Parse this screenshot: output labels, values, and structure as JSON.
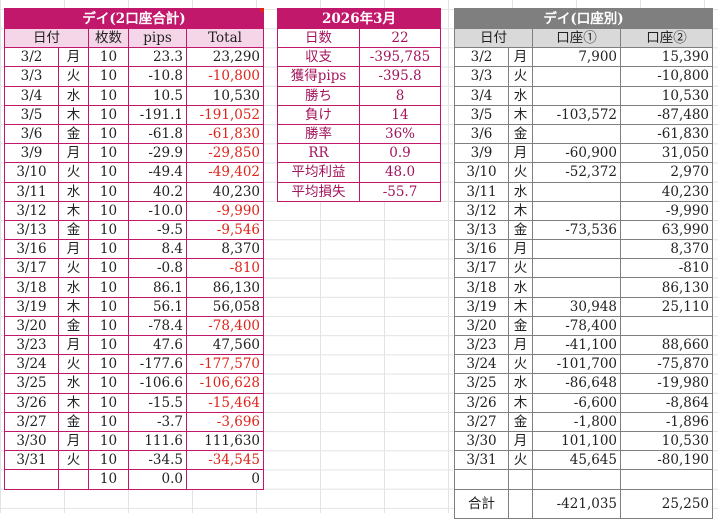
{
  "daily_total": {
    "title": "デイ(2口座合計)",
    "headers": [
      "日付",
      "枚数",
      "pips",
      "Total"
    ],
    "rows": [
      {
        "date": "3/2",
        "dow": "月",
        "lots": "10",
        "pips": "23.3",
        "total": "23,290",
        "neg": false
      },
      {
        "date": "3/3",
        "dow": "火",
        "lots": "10",
        "pips": "-10.8",
        "total": "-10,800",
        "neg": true
      },
      {
        "date": "3/4",
        "dow": "水",
        "lots": "10",
        "pips": "10.5",
        "total": "10,530",
        "neg": false
      },
      {
        "date": "3/5",
        "dow": "木",
        "lots": "10",
        "pips": "-191.1",
        "total": "-191,052",
        "neg": true
      },
      {
        "date": "3/6",
        "dow": "金",
        "lots": "10",
        "pips": "-61.8",
        "total": "-61,830",
        "neg": true
      },
      {
        "date": "3/9",
        "dow": "月",
        "lots": "10",
        "pips": "-29.9",
        "total": "-29,850",
        "neg": true
      },
      {
        "date": "3/10",
        "dow": "火",
        "lots": "10",
        "pips": "-49.4",
        "total": "-49,402",
        "neg": true
      },
      {
        "date": "3/11",
        "dow": "水",
        "lots": "10",
        "pips": "40.2",
        "total": "40,230",
        "neg": false
      },
      {
        "date": "3/12",
        "dow": "木",
        "lots": "10",
        "pips": "-10.0",
        "total": "-9,990",
        "neg": true
      },
      {
        "date": "3/13",
        "dow": "金",
        "lots": "10",
        "pips": "-9.5",
        "total": "-9,546",
        "neg": true
      },
      {
        "date": "3/16",
        "dow": "月",
        "lots": "10",
        "pips": "8.4",
        "total": "8,370",
        "neg": false
      },
      {
        "date": "3/17",
        "dow": "火",
        "lots": "10",
        "pips": "-0.8",
        "total": "-810",
        "neg": true
      },
      {
        "date": "3/18",
        "dow": "水",
        "lots": "10",
        "pips": "86.1",
        "total": "86,130",
        "neg": false
      },
      {
        "date": "3/19",
        "dow": "木",
        "lots": "10",
        "pips": "56.1",
        "total": "56,058",
        "neg": false
      },
      {
        "date": "3/20",
        "dow": "金",
        "lots": "10",
        "pips": "-78.4",
        "total": "-78,400",
        "neg": true
      },
      {
        "date": "3/23",
        "dow": "月",
        "lots": "10",
        "pips": "47.6",
        "total": "47,560",
        "neg": false
      },
      {
        "date": "3/24",
        "dow": "火",
        "lots": "10",
        "pips": "-177.6",
        "total": "-177,570",
        "neg": true
      },
      {
        "date": "3/25",
        "dow": "水",
        "lots": "10",
        "pips": "-106.6",
        "total": "-106,628",
        "neg": true
      },
      {
        "date": "3/26",
        "dow": "木",
        "lots": "10",
        "pips": "-15.5",
        "total": "-15,464",
        "neg": true
      },
      {
        "date": "3/27",
        "dow": "金",
        "lots": "10",
        "pips": "-3.7",
        "total": "-3,696",
        "neg": true
      },
      {
        "date": "3/30",
        "dow": "月",
        "lots": "10",
        "pips": "111.6",
        "total": "111,630",
        "neg": false
      },
      {
        "date": "3/31",
        "dow": "火",
        "lots": "10",
        "pips": "-34.5",
        "total": "-34,545",
        "neg": true
      },
      {
        "date": "",
        "dow": "",
        "lots": "10",
        "pips": "0.0",
        "total": "0",
        "neg": false
      }
    ]
  },
  "summary": {
    "title": "2026年3月",
    "rows": [
      {
        "label": "日数",
        "value": "22"
      },
      {
        "label": "収支",
        "value": "-395,785"
      },
      {
        "label": "獲得pips",
        "value": "-395.8"
      },
      {
        "label": "勝ち",
        "value": "8"
      },
      {
        "label": "負け",
        "value": "14"
      },
      {
        "label": "勝率",
        "value": "36%"
      },
      {
        "label": "RR",
        "value": "0.9"
      },
      {
        "label": "平均利益",
        "value": "48.0"
      },
      {
        "label": "平均損失",
        "value": "-55.7"
      }
    ]
  },
  "by_account": {
    "title": "デイ(口座別)",
    "headers": [
      "日付",
      "口座①",
      "口座②"
    ],
    "rows": [
      {
        "date": "3/2",
        "dow": "月",
        "a1": "7,900",
        "a2": "15,390"
      },
      {
        "date": "3/3",
        "dow": "火",
        "a1": "",
        "a2": "-10,800"
      },
      {
        "date": "3/4",
        "dow": "水",
        "a1": "",
        "a2": "10,530"
      },
      {
        "date": "3/5",
        "dow": "木",
        "a1": "-103,572",
        "a2": "-87,480"
      },
      {
        "date": "3/6",
        "dow": "金",
        "a1": "",
        "a2": "-61,830"
      },
      {
        "date": "3/9",
        "dow": "月",
        "a1": "-60,900",
        "a2": "31,050"
      },
      {
        "date": "3/10",
        "dow": "火",
        "a1": "-52,372",
        "a2": "2,970"
      },
      {
        "date": "3/11",
        "dow": "水",
        "a1": "",
        "a2": "40,230"
      },
      {
        "date": "3/12",
        "dow": "木",
        "a1": "",
        "a2": "-9,990"
      },
      {
        "date": "3/13",
        "dow": "金",
        "a1": "-73,536",
        "a2": "63,990"
      },
      {
        "date": "3/16",
        "dow": "月",
        "a1": "",
        "a2": "8,370"
      },
      {
        "date": "3/17",
        "dow": "火",
        "a1": "",
        "a2": "-810"
      },
      {
        "date": "3/18",
        "dow": "水",
        "a1": "",
        "a2": "86,130"
      },
      {
        "date": "3/19",
        "dow": "木",
        "a1": "30,948",
        "a2": "25,110"
      },
      {
        "date": "3/20",
        "dow": "金",
        "a1": "-78,400",
        "a2": ""
      },
      {
        "date": "3/23",
        "dow": "月",
        "a1": "-41,100",
        "a2": "88,660"
      },
      {
        "date": "3/24",
        "dow": "火",
        "a1": "-101,700",
        "a2": "-75,870"
      },
      {
        "date": "3/25",
        "dow": "水",
        "a1": "-86,648",
        "a2": "-19,980"
      },
      {
        "date": "3/26",
        "dow": "木",
        "a1": "-6,600",
        "a2": "-8,864"
      },
      {
        "date": "3/27",
        "dow": "金",
        "a1": "-1,800",
        "a2": "-1,896"
      },
      {
        "date": "3/30",
        "dow": "月",
        "a1": "101,100",
        "a2": "10,530"
      },
      {
        "date": "3/31",
        "dow": "火",
        "a1": "45,645",
        "a2": "-80,190"
      },
      {
        "date": "",
        "dow": "",
        "a1": "",
        "a2": ""
      }
    ],
    "total_label": "合計",
    "total_a1": "-421,035",
    "total_a2": "25,250"
  },
  "colors": {
    "accent": "#c2186b",
    "negative": "#e0241b",
    "gray_header": "#7f7f7f"
  }
}
